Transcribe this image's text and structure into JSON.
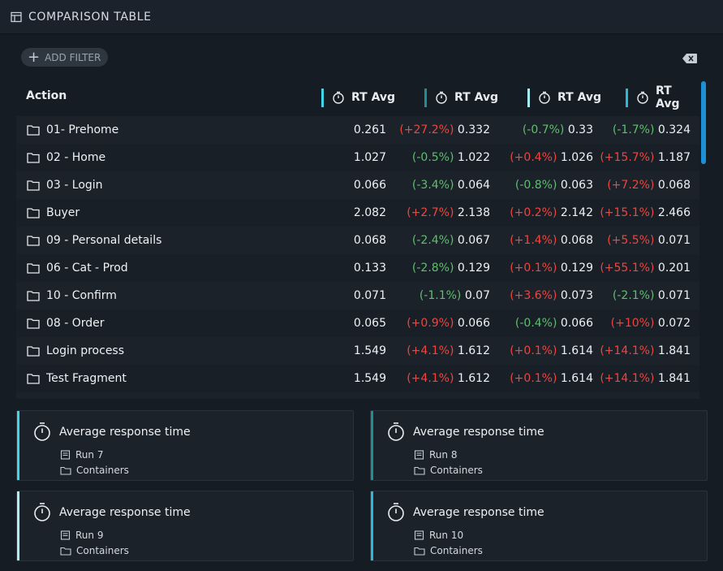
{
  "header": {
    "title": "COMPARISON TABLE",
    "icon": "table-icon"
  },
  "toolbar": {
    "add_filter_label": "ADD FILTER",
    "add_filter_icon": "plus-icon",
    "clear_icon": "backspace-icon"
  },
  "table": {
    "action_header": "Action",
    "columns": [
      {
        "label": "RT Avg",
        "color": "#3fd6e8"
      },
      {
        "label": "RT Avg",
        "color": "#1f8f95"
      },
      {
        "label": "RT Avg",
        "color": "#a8f0f6"
      },
      {
        "label": "RT Avg",
        "color": "#26bcd8"
      }
    ],
    "rows": [
      {
        "name": "01- Prehome",
        "c1": "0.261",
        "c2d": "(+27.2%)",
        "c2": "0.332",
        "c3d": "(-0.7%)",
        "c3": "0.33",
        "c4d": "(-1.7%)",
        "c4": "0.324",
        "s2": "pos",
        "s3": "neg",
        "s4": "neg"
      },
      {
        "name": "02 - Home",
        "c1": "1.027",
        "c2d": "(-0.5%)",
        "c2": "1.022",
        "c3d": "(+0.4%)",
        "c3": "1.026",
        "c4d": "(+15.7%)",
        "c4": "1.187",
        "s2": "neg",
        "s3": "pos",
        "s4": "pos"
      },
      {
        "name": "03 - Login",
        "c1": "0.066",
        "c2d": "(-3.4%)",
        "c2": "0.064",
        "c3d": "(-0.8%)",
        "c3": "0.063",
        "c4d": "(+7.2%)",
        "c4": "0.068",
        "s2": "neg",
        "s3": "neg",
        "s4": "pos"
      },
      {
        "name": "Buyer",
        "c1": "2.082",
        "c2d": "(+2.7%)",
        "c2": "2.138",
        "c3d": "(+0.2%)",
        "c3": "2.142",
        "c4d": "(+15.1%)",
        "c4": "2.466",
        "s2": "pos",
        "s3": "pos",
        "s4": "pos"
      },
      {
        "name": "09 - Personal details",
        "c1": "0.068",
        "c2d": "(-2.4%)",
        "c2": "0.067",
        "c3d": "(+1.4%)",
        "c3": "0.068",
        "c4d": "(+5.5%)",
        "c4": "0.071",
        "s2": "neg",
        "s3": "pos",
        "s4": "pos"
      },
      {
        "name": "06 - Cat - Prod",
        "c1": "0.133",
        "c2d": "(-2.8%)",
        "c2": "0.129",
        "c3d": "(+0.1%)",
        "c3": "0.129",
        "c4d": "(+55.1%)",
        "c4": "0.201",
        "s2": "neg",
        "s3": "pos",
        "s4": "pos"
      },
      {
        "name": "10 - Confirm",
        "c1": "0.071",
        "c2d": "(-1.1%)",
        "c2": "0.07",
        "c3d": "(+3.6%)",
        "c3": "0.073",
        "c4d": "(-2.1%)",
        "c4": "0.071",
        "s2": "neg",
        "s3": "pos",
        "s4": "neg"
      },
      {
        "name": "08 - Order",
        "c1": "0.065",
        "c2d": "(+0.9%)",
        "c2": "0.066",
        "c3d": "(-0.4%)",
        "c3": "0.066",
        "c4d": "(+10%)",
        "c4": "0.072",
        "s2": "pos",
        "s3": "neg",
        "s4": "pos"
      },
      {
        "name": "Login process",
        "c1": "1.549",
        "c2d": "(+4.1%)",
        "c2": "1.612",
        "c3d": "(+0.1%)",
        "c3": "1.614",
        "c4d": "(+14.1%)",
        "c4": "1.841",
        "s2": "pos",
        "s3": "pos",
        "s4": "pos"
      },
      {
        "name": "Test Fragment",
        "c1": "1.549",
        "c2d": "(+4.1%)",
        "c2": "1.612",
        "c3d": "(+0.1%)",
        "c3": "1.614",
        "c4d": "(+14.1%)",
        "c4": "1.841",
        "s2": "pos",
        "s3": "pos",
        "s4": "pos"
      }
    ]
  },
  "cards": [
    {
      "title": "Average response time",
      "run": "Run 7",
      "scope": "Containers",
      "color": "#3fd6e8"
    },
    {
      "title": "Average response time",
      "run": "Run 8",
      "scope": "Containers",
      "color": "#1f8f95"
    },
    {
      "title": "Average response time",
      "run": "Run 9",
      "scope": "Containers",
      "color": "#a8f0f6"
    },
    {
      "title": "Average response time",
      "run": "Run 10",
      "scope": "Containers",
      "color": "#26bcd8"
    }
  ],
  "colors": {
    "positive": "#f1443d",
    "negative": "#5fbf6b",
    "scrollbar": "#1d8fd6"
  }
}
